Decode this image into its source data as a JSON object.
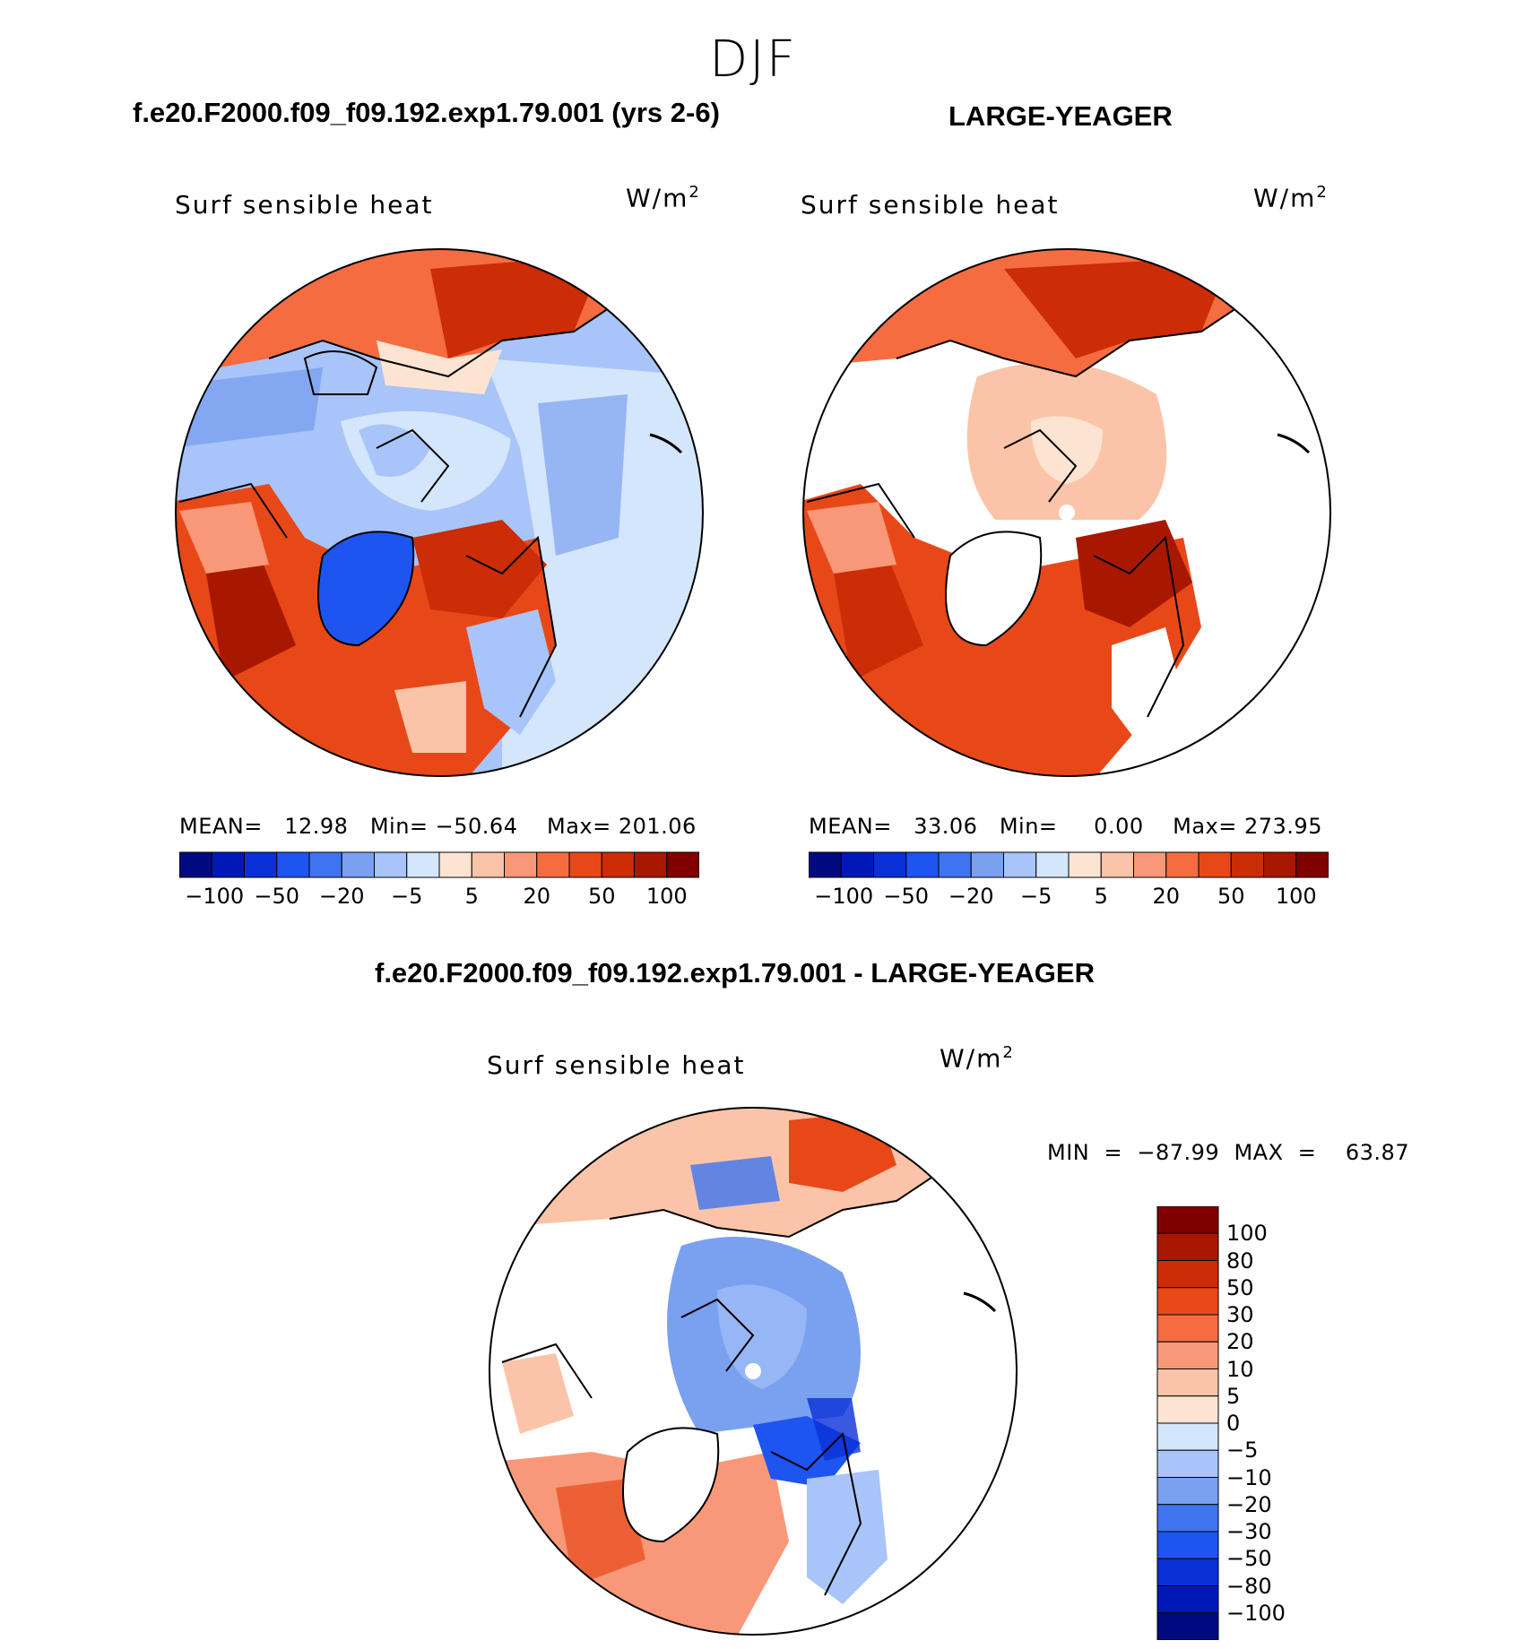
{
  "season": "DJF",
  "panels": {
    "left": {
      "case": "f.e20.F2000.f09_f09.192.exp1.79.001 (yrs 2-6)",
      "variable": "Surf sensible heat",
      "units": "W/m",
      "units_power": "2",
      "stats": "MEAN=   12.98   Min= −50.64    Max= 201.06"
    },
    "right": {
      "case": "LARGE-YEAGER",
      "variable": "Surf sensible heat",
      "units": "W/m",
      "units_power": "2",
      "stats": "MEAN=   33.06   Min=     0.00    Max= 273.95"
    },
    "diff": {
      "case": "f.e20.F2000.f09_f09.192.exp1.79.001 - LARGE-YEAGER",
      "variable": "Surf sensible heat",
      "units": "W/m",
      "units_power": "2",
      "stats": "MIN  =  −87.99  MAX  =    63.87"
    }
  },
  "horizontal_colorbar": {
    "colors": [
      "#000a80",
      "#0018b8",
      "#0a30d8",
      "#1e54f0",
      "#3e74f0",
      "#7aa0f0",
      "#a8c4f8",
      "#d4e6fc",
      "#fde4d2",
      "#fbc4a8",
      "#f89878",
      "#f56c40",
      "#e84818",
      "#cc2c06",
      "#a81800",
      "#800000"
    ],
    "tick_labels": [
      "−100",
      "−50",
      "−20",
      "−5",
      "5",
      "20",
      "50",
      "100"
    ]
  },
  "vertical_colorbar": {
    "colors": [
      "#800000",
      "#a81800",
      "#cc2c06",
      "#e84818",
      "#f56c40",
      "#f89878",
      "#fbc4a8",
      "#fde4d2",
      "#d4e6fc",
      "#a8c4f8",
      "#7aa0f0",
      "#3e74f0",
      "#1e54f0",
      "#0a30d8",
      "#0018b8",
      "#000a80"
    ],
    "tick_labels": [
      "100",
      "80",
      "50",
      "30",
      "20",
      "10",
      "5",
      "0",
      "−5",
      "−10",
      "−20",
      "−30",
      "−50",
      "−80",
      "−100"
    ]
  }
}
